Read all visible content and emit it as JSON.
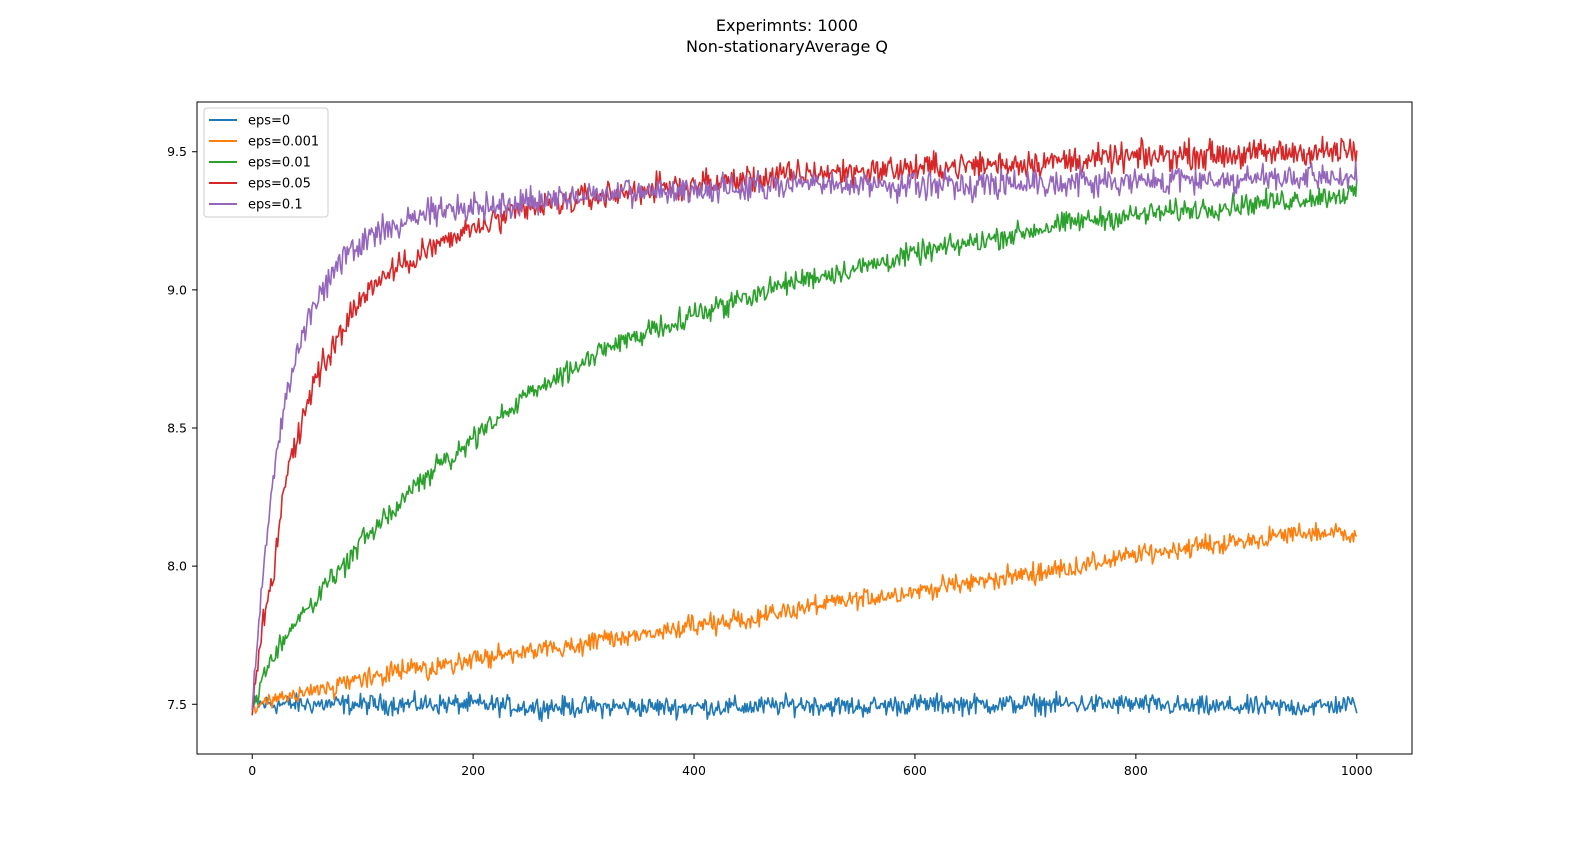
{
  "chart_data": {
    "type": "line",
    "title": "Experimnts: 1000",
    "subtitle": "Non-stationaryAverage Q",
    "xlabel": "",
    "ylabel": "",
    "xlim": [
      -50,
      1050
    ],
    "ylim": [
      7.32,
      9.68
    ],
    "x_ticks": [
      0,
      200,
      400,
      600,
      800,
      1000
    ],
    "x_tick_labels": [
      "0",
      "200",
      "400",
      "600",
      "800",
      "1000"
    ],
    "y_ticks": [
      7.5,
      8.0,
      8.5,
      9.0,
      9.5
    ],
    "y_tick_labels": [
      "7.5",
      "8.0",
      "8.5",
      "9.0",
      "9.5"
    ],
    "grid": false,
    "legend_position": "top-left",
    "x": [
      0,
      10,
      20,
      30,
      40,
      50,
      60,
      80,
      100,
      120,
      150,
      200,
      250,
      300,
      350,
      400,
      450,
      500,
      550,
      600,
      650,
      700,
      750,
      800,
      850,
      900,
      950,
      1000
    ],
    "series": [
      {
        "name": "eps=0",
        "color": "#1f77b4",
        "noise": 0.018,
        "values": [
          7.5,
          7.5,
          7.5,
          7.5,
          7.5,
          7.5,
          7.5,
          7.5,
          7.5,
          7.5,
          7.5,
          7.5,
          7.49,
          7.49,
          7.49,
          7.49,
          7.49,
          7.5,
          7.49,
          7.5,
          7.5,
          7.5,
          7.5,
          7.5,
          7.49,
          7.49,
          7.49,
          7.5
        ]
      },
      {
        "name": "eps=0.001",
        "color": "#ff7f0e",
        "noise": 0.018,
        "values": [
          7.48,
          7.5,
          7.51,
          7.52,
          7.53,
          7.54,
          7.55,
          7.57,
          7.59,
          7.61,
          7.63,
          7.66,
          7.69,
          7.72,
          7.75,
          7.78,
          7.81,
          7.85,
          7.88,
          7.91,
          7.94,
          7.97,
          8.0,
          8.04,
          8.07,
          8.09,
          8.12,
          8.12
        ]
      },
      {
        "name": "eps=0.01",
        "color": "#2ca02c",
        "noise": 0.02,
        "values": [
          7.48,
          7.6,
          7.68,
          7.74,
          7.8,
          7.85,
          7.9,
          7.99,
          8.09,
          8.17,
          8.3,
          8.46,
          8.62,
          8.74,
          8.84,
          8.91,
          8.98,
          9.04,
          9.08,
          9.13,
          9.17,
          9.21,
          9.25,
          9.27,
          9.29,
          9.31,
          9.33,
          9.35
        ]
      },
      {
        "name": "eps=0.05",
        "color": "#d62728",
        "noise": 0.025,
        "values": [
          7.46,
          7.8,
          8.0,
          8.3,
          8.45,
          8.6,
          8.7,
          8.85,
          8.98,
          9.05,
          9.13,
          9.22,
          9.29,
          9.33,
          9.36,
          9.38,
          9.4,
          9.42,
          9.43,
          9.44,
          9.45,
          9.46,
          9.47,
          9.48,
          9.49,
          9.49,
          9.5,
          9.5
        ]
      },
      {
        "name": "eps=0.1",
        "color": "#9467bd",
        "noise": 0.025,
        "values": [
          7.48,
          8.0,
          8.35,
          8.6,
          8.75,
          8.9,
          9.0,
          9.1,
          9.17,
          9.22,
          9.27,
          9.3,
          9.32,
          9.34,
          9.35,
          9.36,
          9.37,
          9.38,
          9.38,
          9.38,
          9.38,
          9.39,
          9.39,
          9.39,
          9.4,
          9.4,
          9.4,
          9.41
        ]
      }
    ]
  }
}
